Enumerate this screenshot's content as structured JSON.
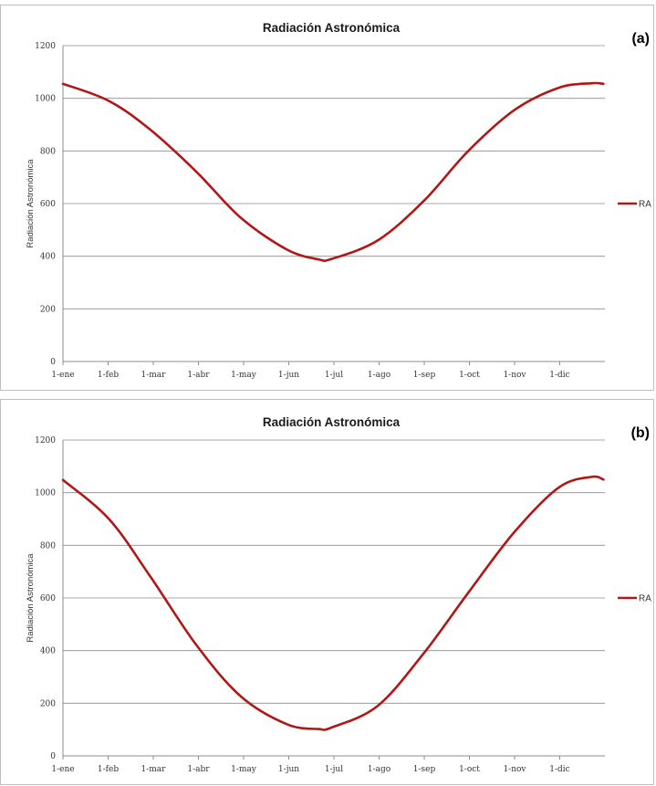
{
  "chart_data": [
    {
      "type": "line",
      "panel_label": "(a)",
      "title": "Radiación Astronómica",
      "xlabel": "",
      "ylabel": "Radiación Astronómica",
      "categories": [
        "1-ene",
        "1-feb",
        "1-mar",
        "1-abr",
        "1-may",
        "1-jun",
        "1-jul",
        "1-ago",
        "1-sep",
        "1-oct",
        "1-nov",
        "1-dic"
      ],
      "ylim": [
        0,
        1200
      ],
      "yticks": [
        0,
        200,
        400,
        600,
        800,
        1000,
        1200
      ],
      "grid": true,
      "legend_position": "right",
      "series": [
        {
          "name": "RA",
          "color": "#b01717",
          "x": [
            0,
            31,
            59,
            90,
            120,
            151,
            172,
            181,
            212,
            243,
            273,
            304,
            334,
            356,
            364
          ],
          "values": [
            1055,
            990,
            880,
            720,
            545,
            425,
            388,
            390,
            460,
            610,
            800,
            955,
            1040,
            1057,
            1055
          ]
        }
      ]
    },
    {
      "type": "line",
      "panel_label": "(b)",
      "title": "Radiación Astronómica",
      "xlabel": "",
      "ylabel": "Radiación Astronómica",
      "categories": [
        "1-ene",
        "1-feb",
        "1-mar",
        "1-abr",
        "1-may",
        "1-jun",
        "1-jul",
        "1-ago",
        "1-sep",
        "1-oct",
        "1-nov",
        "1-dic"
      ],
      "ylim": [
        0,
        1200
      ],
      "yticks": [
        0,
        200,
        400,
        600,
        800,
        1000,
        1200
      ],
      "grid": true,
      "legend_position": "right",
      "series": [
        {
          "name": "RA",
          "color": "#b01717",
          "x": [
            0,
            31,
            59,
            90,
            120,
            151,
            172,
            181,
            212,
            243,
            273,
            304,
            334,
            356,
            364
          ],
          "values": [
            1048,
            900,
            680,
            420,
            225,
            120,
            102,
            108,
            190,
            390,
            620,
            850,
            1020,
            1060,
            1050
          ]
        }
      ]
    }
  ]
}
